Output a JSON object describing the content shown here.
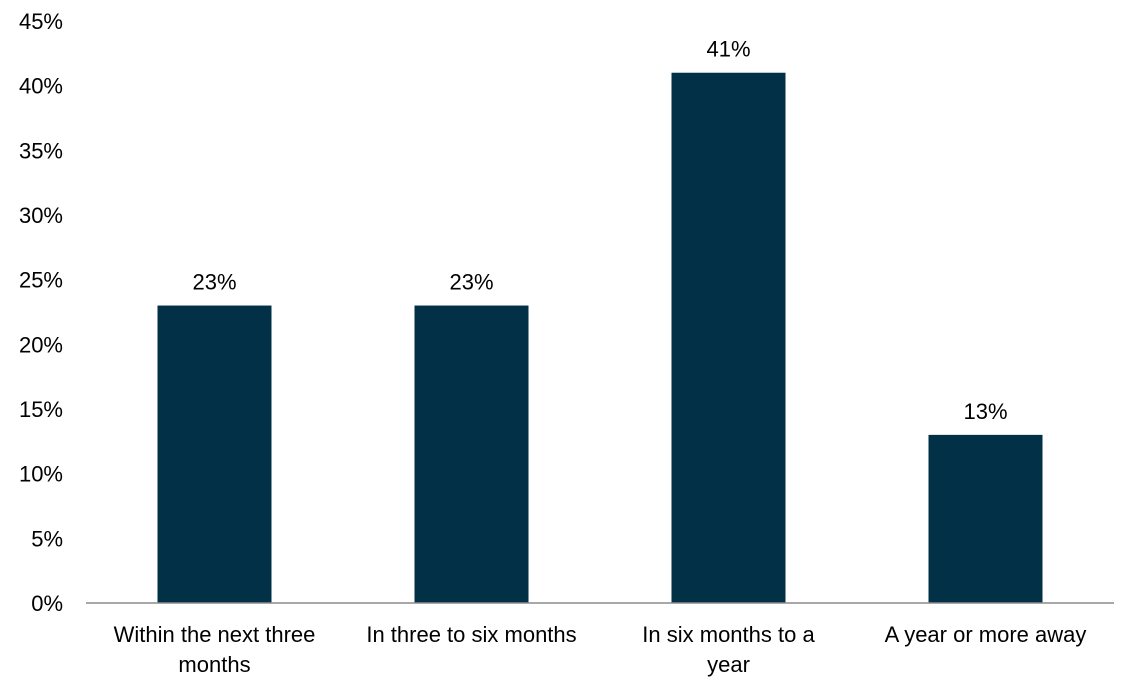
{
  "chart_data": {
    "type": "bar",
    "title": "",
    "xlabel": "",
    "ylabel": "",
    "categories": [
      [
        "Within the next three",
        "months"
      ],
      [
        "In three to six months"
      ],
      [
        "In six months to a",
        "year"
      ],
      [
        "A year or more away"
      ]
    ],
    "values": [
      23,
      23,
      41,
      13
    ],
    "data_labels": [
      "23%",
      "23%",
      "41%",
      "13%"
    ],
    "ylim": [
      0,
      45
    ],
    "yticks": [
      0,
      5,
      10,
      15,
      20,
      25,
      30,
      35,
      40,
      45
    ],
    "ytick_labels": [
      "0%",
      "5%",
      "10%",
      "15%",
      "20%",
      "25%",
      "30%",
      "35%",
      "40%",
      "45%"
    ],
    "grid": false,
    "bar_color": "#023047"
  }
}
